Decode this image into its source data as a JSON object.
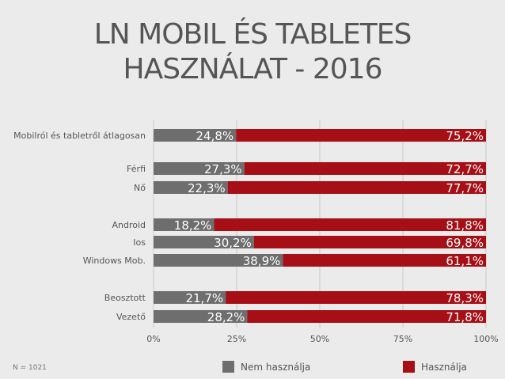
{
  "title_line1": "LN MOBIL ÉS TABLETES",
  "title_line2": "HASZNÁLAT - 2016",
  "footnote": "N = 1021",
  "colors": {
    "nem": "#6e6e6e",
    "hasznalja": "#a50f15",
    "text": "#555555",
    "grid": "#c8c8c8"
  },
  "chart_data": {
    "type": "bar",
    "orientation": "horizontal",
    "stacked": true,
    "categories": [
      "Mobilról és tabletről átlagosan",
      "Férfi",
      "Nő",
      "Android",
      "Ios",
      "Windows Mob.",
      "Beosztott",
      "Vezető"
    ],
    "groups": [
      [
        0
      ],
      [
        1,
        2
      ],
      [
        3,
        4,
        5
      ],
      [
        6,
        7
      ]
    ],
    "series": [
      {
        "name": "Nem használja",
        "values": [
          24.8,
          27.3,
          22.3,
          18.2,
          30.2,
          38.9,
          21.7,
          28.2
        ],
        "labels": [
          "24,8%",
          "27,3%",
          "22,3%",
          "18,2%",
          "30,2%",
          "38,9%",
          "21,7%",
          "28,2%"
        ]
      },
      {
        "name": "Használja",
        "values": [
          75.2,
          72.7,
          77.7,
          81.8,
          69.8,
          61.1,
          78.3,
          71.8
        ],
        "labels": [
          "75,2%",
          "72,7%",
          "77,7%",
          "81,8%",
          "69,8%",
          "61,1%",
          "78,3%",
          "71,8%"
        ]
      }
    ],
    "xlim": [
      0,
      100
    ],
    "xticks": [
      0,
      25,
      50,
      75,
      100
    ],
    "xtick_labels": [
      "0%",
      "25%",
      "50%",
      "75%",
      "100%"
    ],
    "grid": true,
    "legend": "bottom"
  }
}
